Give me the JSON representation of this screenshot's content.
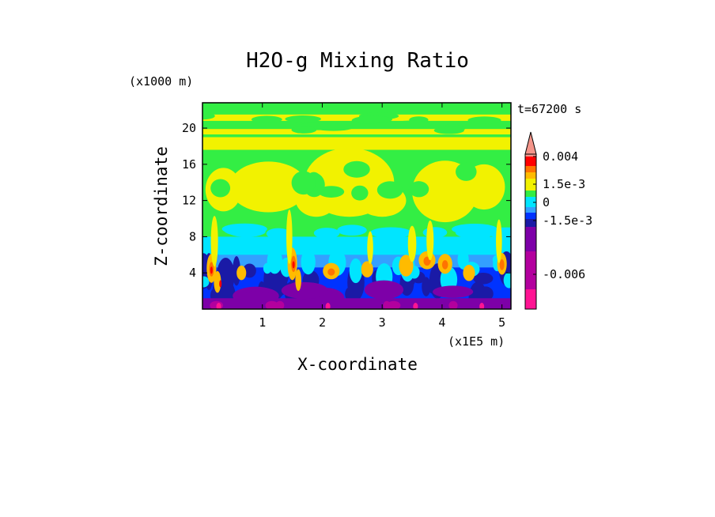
{
  "chart_data": {
    "type": "heatmap",
    "title": "H2O-g Mixing Ratio",
    "xlabel": "X-coordinate",
    "ylabel": "Z-coordinate",
    "x_unit": "(x1E5 m)",
    "y_unit": "(x1000 m)",
    "time_label": "t=67200 s",
    "xlim": [
      0,
      5.15
    ],
    "ylim": [
      0,
      22.8
    ],
    "x_ticks": [
      "1",
      "2",
      "3",
      "4",
      "5"
    ],
    "y_ticks": [
      "4",
      "8",
      "12",
      "16",
      "20"
    ],
    "colorbar": {
      "tick_labels": [
        "0.004",
        "1.5e-3",
        "0",
        "-1.5e-3",
        "-0.006"
      ],
      "tick_values": [
        0.004,
        0.0015,
        0,
        -0.0015,
        -0.006
      ],
      "colors": [
        "#ff1493",
        "#b3009e",
        "#7d00a8",
        "#1a1aa6",
        "#0033ff",
        "#33a0ff",
        "#00e5ff",
        "#33ee44",
        "#f2f200",
        "#ffbb00",
        "#ff7300",
        "#ff0000",
        "#f4958a"
      ],
      "extend_top": true
    }
  }
}
